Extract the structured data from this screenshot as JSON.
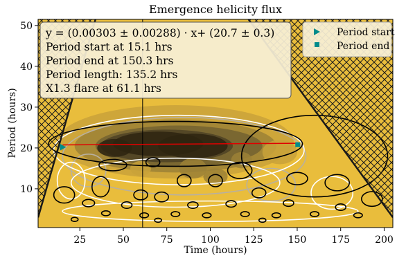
{
  "chart_data": {
    "type": "heatmap",
    "title": "Emergence helicity flux",
    "xlabel": "Time (hours)",
    "ylabel": "Period (hours)",
    "xlim": [
      1,
      205
    ],
    "ylim": [
      0.5,
      51.5
    ],
    "xticks": [
      25,
      50,
      75,
      100,
      125,
      150,
      175,
      200
    ],
    "xtick_labels": [
      "25",
      "50",
      "75",
      "100",
      "125",
      "150",
      "175",
      "200"
    ],
    "yticks": [
      10,
      20,
      30,
      40,
      50
    ],
    "ytick_labels": [
      "10",
      "20",
      "30",
      "40",
      "50"
    ],
    "colors": {
      "background": "#e9bd3c",
      "dark": "#2e2410",
      "fit_line": "#e00000",
      "marker": "#008b8b",
      "hatch": "#1a1a1a",
      "flare_line": "#000000"
    },
    "fit": {
      "slope": 0.00303,
      "slope_err": 0.00288,
      "intercept": 20.7,
      "intercept_err": 0.3,
      "x_start": 15.1,
      "x_end": 150.3
    },
    "period_start": {
      "x": 15.1,
      "y": 20.2
    },
    "period_end": {
      "x": 150.3,
      "y": 20.8
    },
    "flare_time": 61.1,
    "cone_of_influence": {
      "left": [
        [
          1,
          3
        ],
        [
          34,
          51.5
        ]
      ],
      "right": [
        [
          122,
          51.5
        ],
        [
          205,
          3
        ]
      ]
    },
    "annotation_lines": [
      "y = (0.00303 ± 0.00288) · x+ (20.7 ± 0.3)",
      "Period start at 15.1 hrs",
      "Period end at 150.3 hrs",
      "Period length: 135.2 hrs",
      "X1.3 flare at 61.1 hrs"
    ],
    "legend": {
      "position": "top-right",
      "entries": [
        {
          "label": "Period start",
          "marker": "triangle-right",
          "color": "#008b8b"
        },
        {
          "label": "Period end",
          "marker": "square",
          "color": "#008b8b"
        }
      ]
    },
    "power_blobs": [
      {
        "cx": 80,
        "cy": 21.5,
        "rx": 68,
        "ry": 9,
        "level": 1
      },
      {
        "cx": 80,
        "cy": 20.5,
        "rx": 58,
        "ry": 6.5,
        "level": 2
      },
      {
        "cx": 82,
        "cy": 20.5,
        "rx": 48,
        "ry": 5,
        "level": 3
      },
      {
        "cx": 75,
        "cy": 20.5,
        "rx": 38,
        "ry": 4,
        "level": 4
      },
      {
        "cx": 70,
        "cy": 21,
        "rx": 26,
        "ry": 3,
        "level": 5
      },
      {
        "cx": 90,
        "cy": 20.5,
        "rx": 20,
        "ry": 3,
        "level": 5
      },
      {
        "cx": 45,
        "cy": 20,
        "rx": 10,
        "ry": 2.2,
        "level": 5
      },
      {
        "cx": 90,
        "cy": 15,
        "rx": 8,
        "ry": 2.5,
        "level": 2
      },
      {
        "cx": 103,
        "cy": 13,
        "rx": 7,
        "ry": 2,
        "level": 2
      },
      {
        "cx": 118,
        "cy": 17,
        "rx": 6,
        "ry": 2,
        "level": 2
      },
      {
        "cx": 60,
        "cy": 15,
        "rx": 6,
        "ry": 1.8,
        "level": 1
      },
      {
        "cx": 140,
        "cy": 19,
        "rx": 10,
        "ry": 3,
        "level": 1
      }
    ],
    "contours_black": [
      {
        "cx": 80,
        "cy": 21,
        "rx": 73,
        "ry": 5.5
      },
      {
        "cx": 160,
        "cy": 18,
        "rx": 42,
        "ry": 10
      },
      {
        "cx": 44,
        "cy": 15.8,
        "rx": 8,
        "ry": 1.4
      },
      {
        "cx": 67,
        "cy": 16.5,
        "rx": 4,
        "ry": 1.1
      },
      {
        "cx": 117,
        "cy": 14.5,
        "rx": 7,
        "ry": 2
      },
      {
        "cx": 173,
        "cy": 11.5,
        "rx": 7,
        "ry": 2
      },
      {
        "cx": 37,
        "cy": 10.5,
        "rx": 5,
        "ry": 2.5
      },
      {
        "cx": 85,
        "cy": 12,
        "rx": 4,
        "ry": 1.5
      },
      {
        "cx": 103,
        "cy": 12,
        "rx": 4,
        "ry": 1.5
      },
      {
        "cx": 150,
        "cy": 12.5,
        "rx": 6,
        "ry": 1.5
      },
      {
        "cx": 60,
        "cy": 8.5,
        "rx": 4,
        "ry": 1.2
      },
      {
        "cx": 72,
        "cy": 8,
        "rx": 4,
        "ry": 1.2
      },
      {
        "cx": 128,
        "cy": 9,
        "rx": 4,
        "ry": 1.2
      },
      {
        "cx": 16,
        "cy": 8.5,
        "rx": 6,
        "ry": 2
      },
      {
        "cx": 193,
        "cy": 7.5,
        "rx": 6,
        "ry": 1.8
      },
      {
        "cx": 30,
        "cy": 6.5,
        "rx": 3.5,
        "ry": 0.9
      },
      {
        "cx": 52,
        "cy": 6,
        "rx": 3,
        "ry": 0.8
      },
      {
        "cx": 90,
        "cy": 6,
        "rx": 3,
        "ry": 0.8
      },
      {
        "cx": 112,
        "cy": 6.3,
        "rx": 3,
        "ry": 0.8
      },
      {
        "cx": 145,
        "cy": 6.5,
        "rx": 3,
        "ry": 0.8
      },
      {
        "cx": 175,
        "cy": 5.5,
        "rx": 3,
        "ry": 0.8
      },
      {
        "cx": 40,
        "cy": 4,
        "rx": 2.5,
        "ry": 0.6
      },
      {
        "cx": 62,
        "cy": 3.5,
        "rx": 2.5,
        "ry": 0.6
      },
      {
        "cx": 80,
        "cy": 3.8,
        "rx": 2.5,
        "ry": 0.6
      },
      {
        "cx": 98,
        "cy": 3.5,
        "rx": 2.5,
        "ry": 0.6
      },
      {
        "cx": 120,
        "cy": 3.8,
        "rx": 2.5,
        "ry": 0.6
      },
      {
        "cx": 138,
        "cy": 3.5,
        "rx": 2.5,
        "ry": 0.6
      },
      {
        "cx": 160,
        "cy": 3.8,
        "rx": 2.5,
        "ry": 0.6
      },
      {
        "cx": 185,
        "cy": 3.5,
        "rx": 2.5,
        "ry": 0.6
      },
      {
        "cx": 22,
        "cy": 2.5,
        "rx": 2,
        "ry": 0.5
      },
      {
        "cx": 70,
        "cy": 2.3,
        "rx": 2,
        "ry": 0.5
      },
      {
        "cx": 130,
        "cy": 2.3,
        "rx": 2,
        "ry": 0.5
      }
    ],
    "contours_white": [
      {
        "cx": 82,
        "cy": 19.5,
        "rx": 72,
        "ry": 8.5
      },
      {
        "cx": 80,
        "cy": 11.5,
        "rx": 60,
        "ry": 6
      },
      {
        "cx": 20,
        "cy": 12,
        "rx": 8,
        "ry": 4.5
      },
      {
        "cx": 170,
        "cy": 9,
        "rx": 12,
        "ry": 4
      },
      {
        "cx": 100,
        "cy": 4.5,
        "rx": 85,
        "ry": 2.5
      }
    ],
    "contours_gray": [
      {
        "cx": 85,
        "cy": 18,
        "rx": 70,
        "ry": 9.5
      },
      {
        "cx": 135,
        "cy": 11,
        "rx": 14,
        "ry": 4
      },
      {
        "cx": 30,
        "cy": 14.5,
        "rx": 10,
        "ry": 4
      }
    ]
  }
}
